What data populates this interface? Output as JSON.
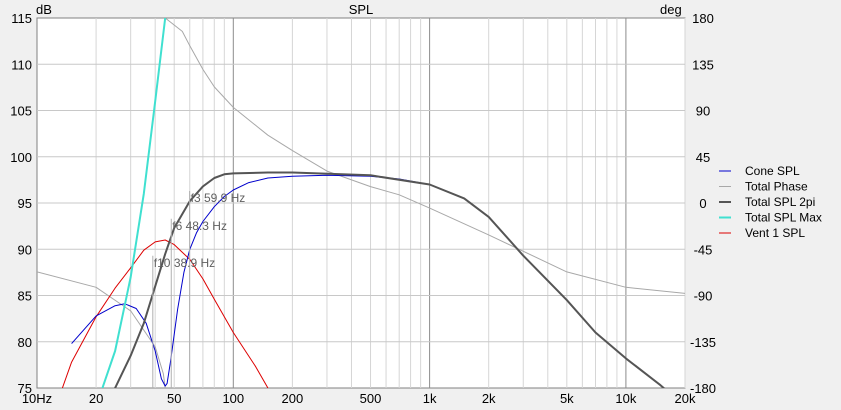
{
  "chart_data": {
    "type": "line",
    "title": "SPL",
    "left_axis_unit": "dB",
    "right_axis_unit": "deg",
    "x_scale": "log",
    "xlim": [
      10,
      20000
    ],
    "ylim": [
      75,
      115
    ],
    "y2lim": [
      -180,
      180
    ],
    "x_ticks": [
      {
        "v": 10,
        "label": "10Hz"
      },
      {
        "v": 20,
        "label": "20"
      },
      {
        "v": 50,
        "label": "50"
      },
      {
        "v": 100,
        "label": "100"
      },
      {
        "v": 200,
        "label": "200"
      },
      {
        "v": 500,
        "label": "500"
      },
      {
        "v": 1000,
        "label": "1k"
      },
      {
        "v": 2000,
        "label": "2k"
      },
      {
        "v": 5000,
        "label": "5k"
      },
      {
        "v": 10000,
        "label": "10k"
      },
      {
        "v": 20000,
        "label": "20k"
      }
    ],
    "y_ticks": [
      "75",
      "80",
      "85",
      "90",
      "95",
      "100",
      "105",
      "110",
      "115"
    ],
    "y2_ticks": [
      "-180",
      "-135",
      "-90",
      "-45",
      "0",
      "45",
      "90",
      "135",
      "180"
    ],
    "grid": true,
    "legend_position": "right",
    "series": [
      {
        "name": "Cone SPL",
        "color": "#0000cc",
        "width": 1,
        "axis": "left",
        "points": [
          [
            15,
            79.8
          ],
          [
            20,
            82.8
          ],
          [
            25,
            83.9
          ],
          [
            28,
            84.1
          ],
          [
            32,
            83.6
          ],
          [
            36,
            82
          ],
          [
            40,
            79
          ],
          [
            43,
            76
          ],
          [
            45,
            75.2
          ],
          [
            46,
            75.5
          ],
          [
            48,
            78
          ],
          [
            52,
            83.5
          ],
          [
            56,
            87.5
          ],
          [
            60,
            90
          ],
          [
            65,
            91.8
          ],
          [
            70,
            93
          ],
          [
            80,
            94.6
          ],
          [
            90,
            95.7
          ],
          [
            100,
            96.4
          ],
          [
            120,
            97.2
          ],
          [
            150,
            97.7
          ],
          [
            200,
            97.9
          ],
          [
            300,
            98
          ],
          [
            500,
            97.9
          ],
          [
            700,
            97.6
          ],
          [
            1000,
            97
          ]
        ]
      },
      {
        "name": "Total Phase",
        "color": "#a8a8a8",
        "width": 1,
        "axis": "right",
        "points": [
          [
            10,
            -67
          ],
          [
            20,
            -82
          ],
          [
            30,
            -105
          ],
          [
            40,
            -140
          ],
          [
            44,
            -166
          ],
          [
            45,
            -180
          ],
          [
            45.01,
            180
          ],
          [
            55,
            167
          ],
          [
            60,
            153
          ],
          [
            70,
            130
          ],
          [
            80,
            113
          ],
          [
            100,
            93
          ],
          [
            150,
            66
          ],
          [
            200,
            51
          ],
          [
            300,
            31
          ],
          [
            500,
            16
          ],
          [
            700,
            8
          ],
          [
            1000,
            -5
          ],
          [
            2000,
            -31
          ],
          [
            5000,
            -67
          ],
          [
            10000,
            -82
          ],
          [
            20000,
            -88
          ]
        ]
      },
      {
        "name": "Total SPL 2pi",
        "color": "#555555",
        "width": 2,
        "axis": "left",
        "points": [
          [
            20,
            72
          ],
          [
            25,
            75
          ],
          [
            30,
            78.5
          ],
          [
            35,
            82
          ],
          [
            40,
            86
          ],
          [
            45,
            89.5
          ],
          [
            50,
            92.3
          ],
          [
            60,
            95.2
          ],
          [
            70,
            96.8
          ],
          [
            80,
            97.7
          ],
          [
            90,
            98.1
          ],
          [
            100,
            98.2
          ],
          [
            150,
            98.3
          ],
          [
            200,
            98.3
          ],
          [
            500,
            98
          ],
          [
            1000,
            97
          ],
          [
            1500,
            95.5
          ],
          [
            2000,
            93.5
          ],
          [
            3000,
            89.3
          ],
          [
            5000,
            84.5
          ],
          [
            7000,
            81
          ],
          [
            10000,
            78.2
          ],
          [
            15000,
            75.3
          ],
          [
            20000,
            73
          ]
        ]
      },
      {
        "name": "Total SPL Max",
        "color": "#40e0d0",
        "width": 2,
        "axis": "left",
        "points": [
          [
            20,
            73
          ],
          [
            25,
            79
          ],
          [
            30,
            87
          ],
          [
            35,
            96
          ],
          [
            40,
            106
          ],
          [
            45,
            115
          ]
        ],
        "extra_points": [
          [
            59,
            115.8
          ],
          [
            61,
            115.6
          ],
          [
            64,
            115.6
          ],
          [
            67,
            115.9
          ]
        ]
      },
      {
        "name": "Vent 1 SPL",
        "color": "#dd0000",
        "width": 1,
        "axis": "left",
        "points": [
          [
            12,
            72
          ],
          [
            15,
            77.8
          ],
          [
            20,
            82.7
          ],
          [
            25,
            85.8
          ],
          [
            30,
            88
          ],
          [
            35,
            89.9
          ],
          [
            40,
            90.8
          ],
          [
            45,
            91
          ],
          [
            50,
            90.5
          ],
          [
            60,
            88.9
          ],
          [
            70,
            86.8
          ],
          [
            80,
            84.6
          ],
          [
            100,
            81
          ],
          [
            130,
            77.3
          ],
          [
            150,
            75
          ],
          [
            180,
            72
          ]
        ]
      }
    ],
    "annotations": [
      {
        "text": "f3 59.9 Hz",
        "x": 59.9,
        "y": 95
      },
      {
        "text": "f6 48.3 Hz",
        "x": 48.3,
        "y": 92
      },
      {
        "text": "f10 38.9 Hz",
        "x": 38.9,
        "y": 88
      }
    ]
  }
}
